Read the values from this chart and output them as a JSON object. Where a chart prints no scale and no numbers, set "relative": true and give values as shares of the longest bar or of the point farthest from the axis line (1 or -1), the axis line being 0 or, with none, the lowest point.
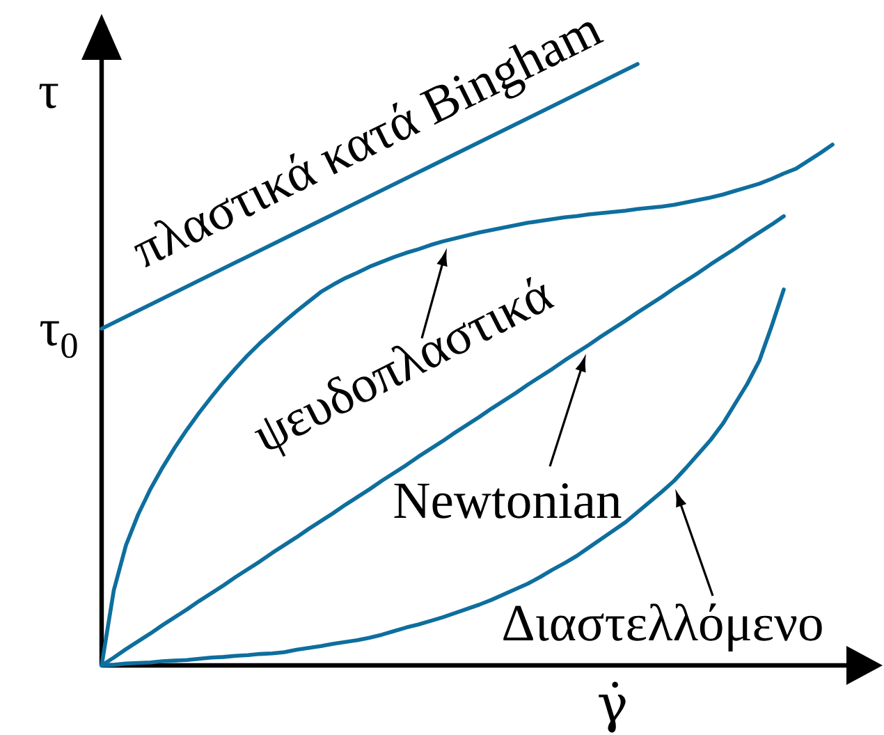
{
  "chart_data": {
    "type": "line",
    "relative": true,
    "ylabel": "τ",
    "xlabel": "γ̇",
    "categories": [
      null,
      null,
      null,
      null,
      null,
      null,
      null,
      null,
      null,
      null,
      null,
      null,
      null,
      null,
      null,
      null,
      null,
      null,
      null,
      null,
      null,
      null,
      null,
      null,
      null,
      null,
      null,
      null,
      null,
      null,
      null,
      null,
      null,
      null,
      null,
      null,
      null,
      null,
      null,
      null,
      null,
      null,
      null,
      null,
      null,
      null,
      null,
      null,
      null,
      null,
      null,
      null,
      null,
      null,
      null,
      null,
      null,
      null,
      null,
      null,
      null
    ],
    "series": [
      {
        "name": "πλαστικά κατά Bingham",
        "color": "#0e6e9e",
        "values": [
          0.56,
          0.57,
          0.58,
          0.59,
          0.6,
          0.61,
          0.62,
          0.63,
          0.64,
          0.65,
          0.66,
          0.67,
          0.68,
          0.69,
          0.7,
          0.71,
          0.72,
          0.73,
          0.74,
          0.75,
          0.76,
          0.77,
          0.78,
          0.79,
          0.8,
          0.81,
          0.82,
          0.83,
          0.84,
          0.85,
          0.86,
          0.87,
          0.88,
          0.89,
          0.9,
          0.91,
          0.92,
          0.93,
          0.94,
          0.95,
          0.96,
          0.97,
          0.98,
          0.99,
          1.0,
          null,
          null,
          null,
          null,
          null,
          null,
          null,
          null,
          null,
          null,
          null,
          null,
          null,
          null,
          null,
          null
        ]
      },
      {
        "name": "ψευδοπλαστικά",
        "color": "#0e6e9e",
        "values": [
          0,
          0.125,
          0.2,
          0.251,
          0.293,
          0.329,
          0.362,
          0.392,
          0.42,
          0.446,
          0.471,
          0.494,
          0.516,
          0.536,
          0.554,
          0.572,
          0.589,
          0.605,
          0.621,
          0.633,
          0.644,
          0.653,
          0.663,
          0.671,
          0.679,
          0.686,
          0.692,
          0.699,
          0.705,
          0.71,
          0.715,
          0.72,
          0.724,
          0.728,
          0.732,
          0.736,
          0.739,
          0.742,
          0.745,
          0.747,
          0.75,
          0.752,
          0.754,
          0.756,
          0.759,
          0.761,
          0.763,
          0.766,
          0.77,
          0.774,
          0.778,
          0.783,
          0.789,
          0.795,
          0.801,
          0.809,
          0.818,
          0.826,
          0.839,
          0.852,
          0.866
        ]
      },
      {
        "name": "Newtonian",
        "color": "#0e6e9e",
        "values": [
          0,
          0.013,
          0.027,
          0.04,
          0.053,
          0.067,
          0.08,
          0.093,
          0.107,
          0.12,
          0.133,
          0.147,
          0.16,
          0.173,
          0.187,
          0.2,
          0.213,
          0.227,
          0.24,
          0.253,
          0.267,
          0.28,
          0.293,
          0.307,
          0.32,
          0.333,
          0.347,
          0.36,
          0.373,
          0.387,
          0.4,
          0.413,
          0.427,
          0.44,
          0.453,
          0.467,
          0.48,
          0.493,
          0.507,
          0.52,
          0.533,
          0.547,
          0.56,
          0.573,
          0.587,
          0.6,
          0.613,
          0.627,
          0.64,
          0.653,
          0.667,
          0.68,
          0.693,
          0.707,
          0.72,
          0.733,
          0.747,
          null,
          null,
          null,
          null
        ]
      },
      {
        "name": "Διαστελλόμενο",
        "color": "#0e6e9e",
        "values": [
          0,
          0.001,
          0.003,
          0.004,
          0.005,
          0.007,
          0.008,
          0.009,
          0.011,
          0.013,
          0.014,
          0.016,
          0.017,
          0.019,
          0.02,
          0.022,
          0.026,
          0.029,
          0.032,
          0.036,
          0.039,
          0.042,
          0.046,
          0.051,
          0.057,
          0.063,
          0.068,
          0.074,
          0.08,
          0.087,
          0.094,
          0.101,
          0.109,
          0.118,
          0.127,
          0.136,
          0.147,
          0.159,
          0.17,
          0.182,
          0.196,
          0.21,
          0.224,
          0.238,
          0.255,
          0.272,
          0.289,
          0.307,
          0.329,
          0.352,
          0.375,
          0.402,
          0.435,
          0.468,
          0.507,
          0.564,
          0.625,
          null,
          null,
          null,
          null
        ]
      }
    ],
    "annotations": [
      "τ$_{0}$"
    ]
  }
}
